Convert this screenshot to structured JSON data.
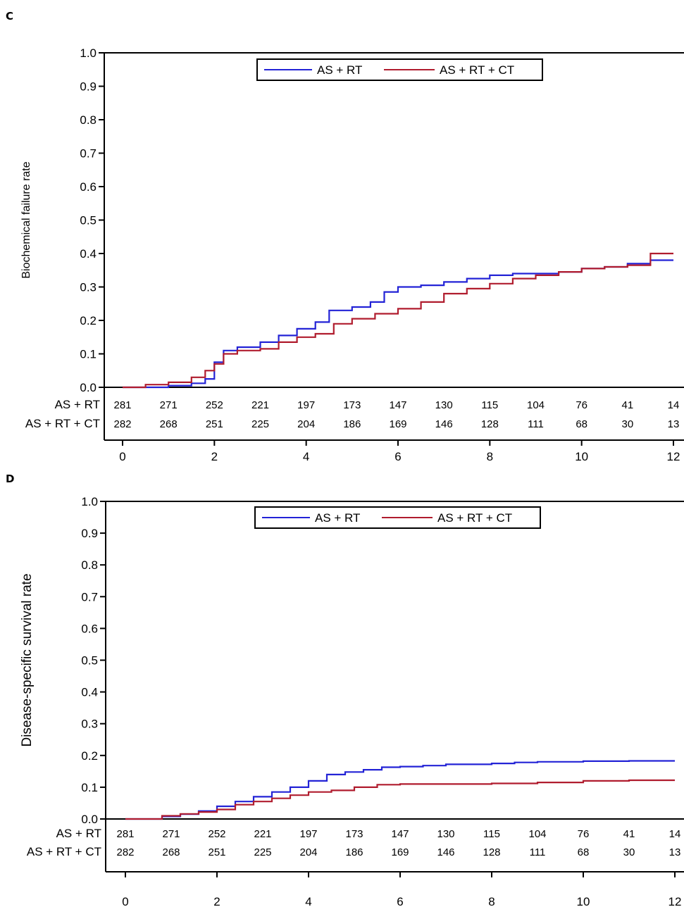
{
  "chart_data": [
    {
      "panel_label": "C",
      "type": "line",
      "ylabel": "Biochemical failure rate",
      "xlim": [
        0,
        12
      ],
      "ylim": [
        0,
        1.0
      ],
      "x_ticks": [
        "0",
        "2",
        "4",
        "6",
        "8",
        "10",
        "12"
      ],
      "y_ticks": [
        "0.0",
        "0.1",
        "0.2",
        "0.3",
        "0.4",
        "0.5",
        "0.6",
        "0.7",
        "0.8",
        "0.9",
        "1.0"
      ],
      "legend_position": "top-center",
      "series": [
        {
          "name": "AS + RT",
          "color": "#2323d6",
          "x": [
            0,
            0.5,
            1.0,
            1.5,
            1.8,
            2.0,
            2.2,
            2.5,
            3.0,
            3.4,
            3.8,
            4.2,
            4.5,
            5.0,
            5.4,
            5.7,
            6.0,
            6.5,
            7.0,
            7.5,
            8.0,
            8.5,
            9.0,
            9.5,
            10.0,
            10.5,
            11.0,
            11.5,
            12.0
          ],
          "y": [
            0.0,
            0.0,
            0.005,
            0.012,
            0.025,
            0.075,
            0.11,
            0.12,
            0.135,
            0.155,
            0.175,
            0.195,
            0.23,
            0.24,
            0.255,
            0.285,
            0.3,
            0.305,
            0.315,
            0.325,
            0.335,
            0.34,
            0.34,
            0.345,
            0.355,
            0.36,
            0.37,
            0.38,
            0.38
          ]
        },
        {
          "name": "AS + RT + CT",
          "color": "#b01c2e",
          "x": [
            0,
            0.5,
            1.0,
            1.5,
            1.8,
            2.0,
            2.2,
            2.5,
            3.0,
            3.4,
            3.8,
            4.2,
            4.6,
            5.0,
            5.5,
            6.0,
            6.5,
            7.0,
            7.5,
            8.0,
            8.5,
            9.0,
            9.5,
            10.0,
            10.5,
            11.0,
            11.5,
            12.0
          ],
          "y": [
            0.0,
            0.008,
            0.015,
            0.03,
            0.05,
            0.07,
            0.1,
            0.11,
            0.115,
            0.135,
            0.15,
            0.16,
            0.19,
            0.205,
            0.22,
            0.235,
            0.255,
            0.28,
            0.295,
            0.31,
            0.325,
            0.335,
            0.345,
            0.355,
            0.36,
            0.365,
            0.4,
            0.4
          ]
        }
      ],
      "risk_table": {
        "rows": [
          {
            "label": "AS + RT",
            "values": [
              "281",
              "271",
              "252",
              "221",
              "197",
              "173",
              "147",
              "130",
              "115",
              "104",
              "76",
              "41",
              "14"
            ]
          },
          {
            "label": "AS + RT + CT",
            "values": [
              "282",
              "268",
              "251",
              "225",
              "204",
              "186",
              "169",
              "146",
              "128",
              "111",
              "68",
              "30",
              "13"
            ]
          }
        ]
      }
    },
    {
      "panel_label": "D",
      "type": "line",
      "ylabel": "Disease-specific survival rate",
      "xlim": [
        0,
        12
      ],
      "ylim": [
        0,
        1.0
      ],
      "x_ticks": [
        "0",
        "2",
        "4",
        "6",
        "8",
        "10",
        "12"
      ],
      "y_ticks": [
        "0.0",
        "0.1",
        "0.2",
        "0.3",
        "0.4",
        "0.5",
        "0.6",
        "0.7",
        "0.8",
        "0.9",
        "1.0"
      ],
      "legend_position": "top-center",
      "series": [
        {
          "name": "AS + RT",
          "color": "#2323d6",
          "x": [
            0,
            0.5,
            0.8,
            1.2,
            1.6,
            2.0,
            2.4,
            2.8,
            3.2,
            3.6,
            4.0,
            4.4,
            4.8,
            5.2,
            5.6,
            6.0,
            6.5,
            7.0,
            8.0,
            8.5,
            9.0,
            10.0,
            11.0,
            12.0
          ],
          "y": [
            0.0,
            0.0,
            0.008,
            0.015,
            0.025,
            0.04,
            0.055,
            0.07,
            0.085,
            0.1,
            0.12,
            0.14,
            0.148,
            0.155,
            0.163,
            0.165,
            0.168,
            0.172,
            0.175,
            0.178,
            0.18,
            0.182,
            0.183,
            0.183
          ]
        },
        {
          "name": "AS + RT + CT",
          "color": "#b01c2e",
          "x": [
            0,
            0.5,
            0.8,
            1.2,
            1.6,
            2.0,
            2.4,
            2.8,
            3.2,
            3.6,
            4.0,
            4.5,
            5.0,
            5.5,
            6.0,
            7.0,
            8.0,
            9.0,
            10.0,
            11.0,
            12.0
          ],
          "y": [
            0.0,
            0.0,
            0.01,
            0.016,
            0.022,
            0.03,
            0.045,
            0.055,
            0.065,
            0.075,
            0.085,
            0.09,
            0.1,
            0.108,
            0.11,
            0.11,
            0.112,
            0.115,
            0.12,
            0.122,
            0.122
          ]
        }
      ],
      "risk_table": {
        "rows": [
          {
            "label": "AS + RT",
            "values": [
              "281",
              "271",
              "252",
              "221",
              "197",
              "173",
              "147",
              "130",
              "115",
              "104",
              "76",
              "41",
              "14"
            ]
          },
          {
            "label": "AS + RT + CT",
            "values": [
              "282",
              "268",
              "251",
              "225",
              "204",
              "186",
              "169",
              "146",
              "128",
              "111",
              "68",
              "30",
              "13"
            ]
          }
        ]
      }
    }
  ]
}
